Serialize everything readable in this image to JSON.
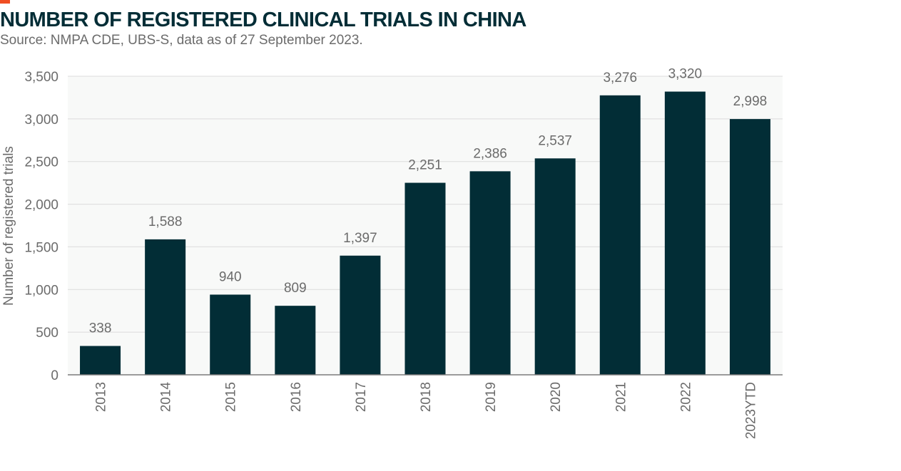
{
  "title": "NUMBER OF REGISTERED CLINICAL TRIALS IN CHINA",
  "subtitle": "Source: NMPA CDE, UBS-S, data as of 27 September 2023.",
  "colors": {
    "bar": "#022d36",
    "accent": "#f04e23",
    "title": "#022d36",
    "text": "#6b6b6b",
    "plot_bg": "#f8f9f8",
    "grid": "#dcdcdc"
  },
  "chart_data": {
    "type": "bar",
    "title": "NUMBER OF REGISTERED CLINICAL TRIALS IN CHINA",
    "xlabel": "",
    "ylabel": "Number of registered trials",
    "categories": [
      "2013",
      "2014",
      "2015",
      "2016",
      "2017",
      "2018",
      "2019",
      "2020",
      "2021",
      "2022",
      "2023YTD"
    ],
    "values": [
      338,
      1588,
      940,
      809,
      1397,
      2251,
      2386,
      2537,
      3276,
      3320,
      2998
    ],
    "data_labels": [
      "338",
      "1,588",
      "940",
      "809",
      "1,397",
      "2,251",
      "2,386",
      "2,537",
      "3,276",
      "3,320",
      "2,998"
    ],
    "ylim": [
      0,
      3500
    ],
    "yticks": [
      0,
      500,
      1000,
      1500,
      2000,
      2500,
      3000,
      3500
    ],
    "ytick_labels": [
      "0",
      "500",
      "1,000",
      "1,500",
      "2,000",
      "2,500",
      "3,000",
      "3,500"
    ],
    "grid": true,
    "legend": "none"
  }
}
